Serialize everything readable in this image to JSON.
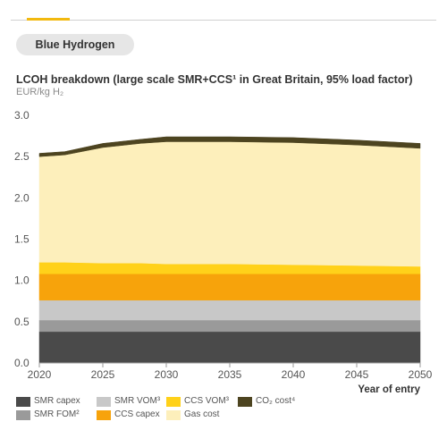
{
  "header": {
    "pill_label": "Blue Hydrogen"
  },
  "chart_data": {
    "type": "area",
    "stacked": true,
    "title": "LCOH breakdown (large scale SMR+CCS¹ in Great Britain, 95% load factor)",
    "ylabel": "EUR/kg H₂",
    "xlabel": "Year of entry",
    "xlim": [
      2020,
      2050
    ],
    "ylim": [
      0,
      3.0
    ],
    "x_ticks": [
      "2020",
      "2025",
      "2030",
      "2035",
      "2040",
      "2045",
      "2050"
    ],
    "y_ticks": [
      "0.0",
      "0.5",
      "1.0",
      "1.5",
      "2.0",
      "2.5",
      "3.0"
    ],
    "grid": false,
    "legend_position": "bottom",
    "x": [
      2020,
      2022,
      2025,
      2028,
      2030,
      2035,
      2040,
      2045,
      2050
    ],
    "series": [
      {
        "name": "SMR capex",
        "color": "#4a4a4a",
        "values": [
          0.38,
          0.38,
          0.38,
          0.38,
          0.38,
          0.38,
          0.38,
          0.38,
          0.38
        ]
      },
      {
        "name": "SMR FOM²",
        "color": "#9a9a9a",
        "values": [
          0.14,
          0.14,
          0.14,
          0.14,
          0.14,
          0.14,
          0.14,
          0.14,
          0.14
        ]
      },
      {
        "name": "SMR VOM³",
        "color": "#c8c8c8",
        "values": [
          0.24,
          0.24,
          0.24,
          0.24,
          0.24,
          0.24,
          0.24,
          0.24,
          0.24
        ]
      },
      {
        "name": "CCS capex",
        "color": "#f7a30b",
        "values": [
          0.32,
          0.32,
          0.32,
          0.32,
          0.32,
          0.32,
          0.32,
          0.32,
          0.32
        ]
      },
      {
        "name": "CCS VOM³",
        "color": "#ffd11a",
        "values": [
          0.14,
          0.14,
          0.13,
          0.13,
          0.12,
          0.12,
          0.11,
          0.1,
          0.09
        ]
      },
      {
        "name": "Gas cost",
        "color": "#fdefbb",
        "values": [
          1.28,
          1.3,
          1.4,
          1.45,
          1.48,
          1.48,
          1.48,
          1.46,
          1.43
        ]
      },
      {
        "name": "CO₂ cost⁴",
        "color": "#4d4420",
        "values": [
          0.04,
          0.04,
          0.05,
          0.05,
          0.06,
          0.06,
          0.06,
          0.06,
          0.06
        ]
      }
    ]
  }
}
